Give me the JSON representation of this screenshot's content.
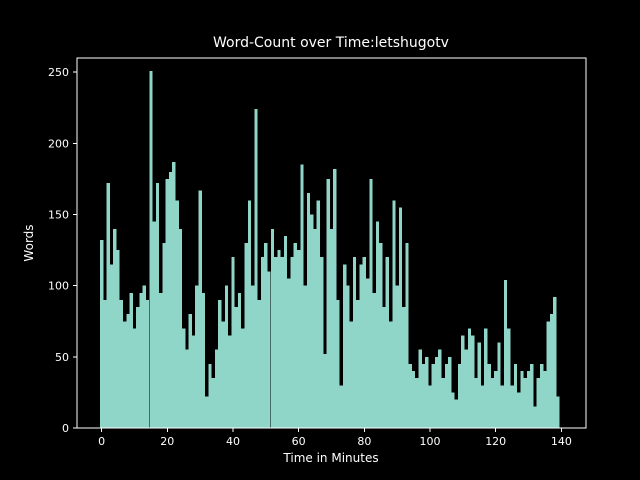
{
  "chart_data": {
    "type": "bar",
    "title": "Word-Count over Time:letshugotv",
    "xlabel": "Time in Minutes",
    "ylabel": "Words",
    "bar_color": "#8fd5c8",
    "background": "#000000",
    "text_color": "#ffffff",
    "grid": false,
    "legend": null,
    "xlim": [
      -7.5,
      147.5
    ],
    "ylim": [
      0,
      260
    ],
    "xticks": [
      0,
      20,
      40,
      60,
      80,
      100,
      120,
      140
    ],
    "yticks": [
      0,
      50,
      100,
      150,
      200,
      250
    ],
    "x": [
      0,
      1,
      2,
      3,
      4,
      5,
      6,
      7,
      8,
      9,
      10,
      11,
      12,
      13,
      14,
      15,
      16,
      17,
      18,
      19,
      20,
      21,
      22,
      23,
      24,
      25,
      26,
      27,
      28,
      29,
      30,
      31,
      32,
      33,
      34,
      35,
      36,
      37,
      38,
      39,
      40,
      41,
      42,
      43,
      44,
      45,
      46,
      47,
      48,
      49,
      50,
      51,
      52,
      53,
      54,
      55,
      56,
      57,
      58,
      59,
      60,
      61,
      62,
      63,
      64,
      65,
      66,
      67,
      68,
      69,
      70,
      71,
      72,
      73,
      74,
      75,
      76,
      77,
      78,
      79,
      80,
      81,
      82,
      83,
      84,
      85,
      86,
      87,
      88,
      89,
      90,
      91,
      92,
      93,
      94,
      95,
      96,
      97,
      98,
      99,
      100,
      101,
      102,
      103,
      104,
      105,
      106,
      107,
      108,
      109,
      110,
      111,
      112,
      113,
      114,
      115,
      116,
      117,
      118,
      119,
      120,
      121,
      122,
      123,
      124,
      125,
      126,
      127,
      128,
      129,
      130,
      131,
      132,
      133,
      134,
      135,
      136,
      137,
      138,
      139
    ],
    "values": [
      132,
      90,
      172,
      115,
      140,
      125,
      90,
      75,
      80,
      95,
      70,
      85,
      95,
      100,
      90,
      251,
      145,
      172,
      95,
      130,
      175,
      180,
      187,
      160,
      140,
      70,
      55,
      80,
      65,
      100,
      167,
      95,
      22,
      45,
      35,
      55,
      90,
      75,
      100,
      65,
      120,
      85,
      95,
      70,
      130,
      160,
      100,
      224,
      90,
      120,
      130,
      110,
      140,
      120,
      125,
      120,
      135,
      105,
      120,
      130,
      125,
      185,
      100,
      165,
      150,
      140,
      160,
      120,
      52,
      175,
      140,
      182,
      90,
      30,
      115,
      100,
      75,
      120,
      90,
      115,
      120,
      105,
      175,
      95,
      145,
      130,
      85,
      120,
      75,
      160,
      100,
      155,
      85,
      130,
      45,
      40,
      35,
      55,
      45,
      50,
      30,
      45,
      50,
      55,
      35,
      45,
      50,
      25,
      20,
      45,
      65,
      55,
      70,
      65,
      35,
      60,
      30,
      70,
      45,
      35,
      40,
      60,
      30,
      104,
      70,
      30,
      45,
      25,
      40,
      35,
      40,
      45,
      15,
      35,
      45,
      40,
      75,
      80,
      92,
      22
    ]
  }
}
